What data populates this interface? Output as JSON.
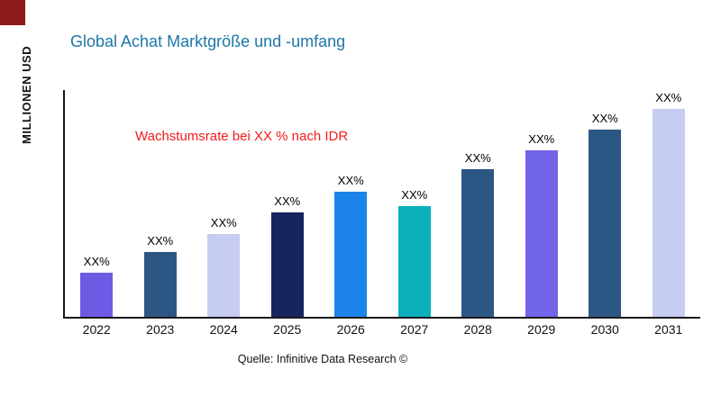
{
  "page": {
    "title": "Global Achat Marktgröße und -umfang",
    "annotation": "Wachstumsrate bei XX % nach IDR",
    "y_axis_label": "MILLIONEN USD",
    "source": "Quelle: Infinitive Data Research ©"
  },
  "colors": {
    "title": "#1D76A8",
    "annotation": "#F21B1B",
    "axis": "#1a1a1a",
    "corner_accent": "#8E1B1B"
  },
  "chart_data": {
    "type": "bar",
    "title": "Global Achat Marktgröße und -umfang",
    "xlabel": "",
    "ylabel": "MILLIONEN USD",
    "categories": [
      "2022",
      "2023",
      "2024",
      "2025",
      "2026",
      "2027",
      "2028",
      "2029",
      "2030",
      "2031"
    ],
    "values": [
      21,
      31,
      40,
      50,
      60,
      53,
      71,
      80,
      90,
      100
    ],
    "value_labels": [
      "XX%",
      "XX%",
      "XX%",
      "XX%",
      "XX%",
      "XX%",
      "XX%",
      "XX%",
      "XX%",
      "XX%"
    ],
    "bar_colors": [
      "#6E5BE4",
      "#2C5784",
      "#C7CCF2",
      "#18245E",
      "#1C84E8",
      "#09B0BC",
      "#2C5784",
      "#7265E9",
      "#2C5784",
      "#C7CCF2"
    ],
    "ylim": [
      0,
      109
    ],
    "grid": false,
    "legend": "none",
    "annotation": "Wachstumsrate bei XX % nach IDR",
    "source": "Quelle: Infinitive Data Research ©"
  }
}
